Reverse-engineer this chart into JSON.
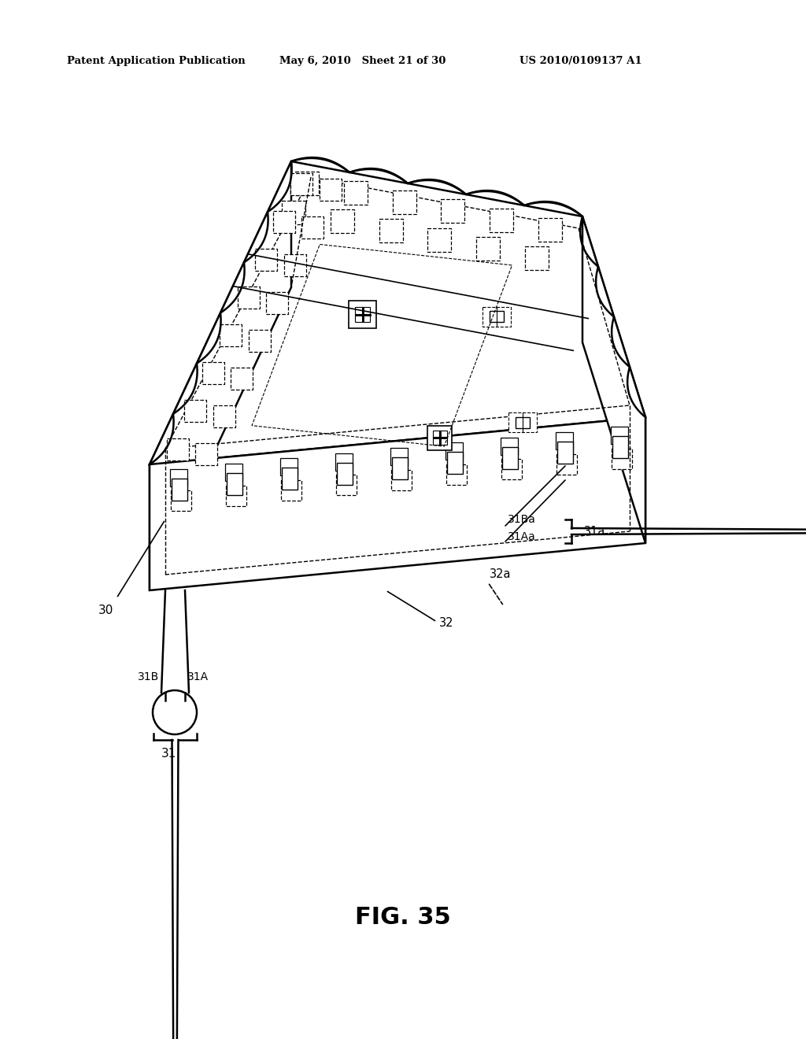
{
  "bg_color": "#ffffff",
  "line_color": "#000000",
  "header_left": "Patent Application Publication",
  "header_mid": "May 6, 2010   Sheet 21 of 30",
  "header_right": "US 2010/0109137 A1",
  "fig_label": "FIG. 35",
  "lw_main": 1.8,
  "lw_thin": 1.2,
  "lw_dash": 1.0
}
